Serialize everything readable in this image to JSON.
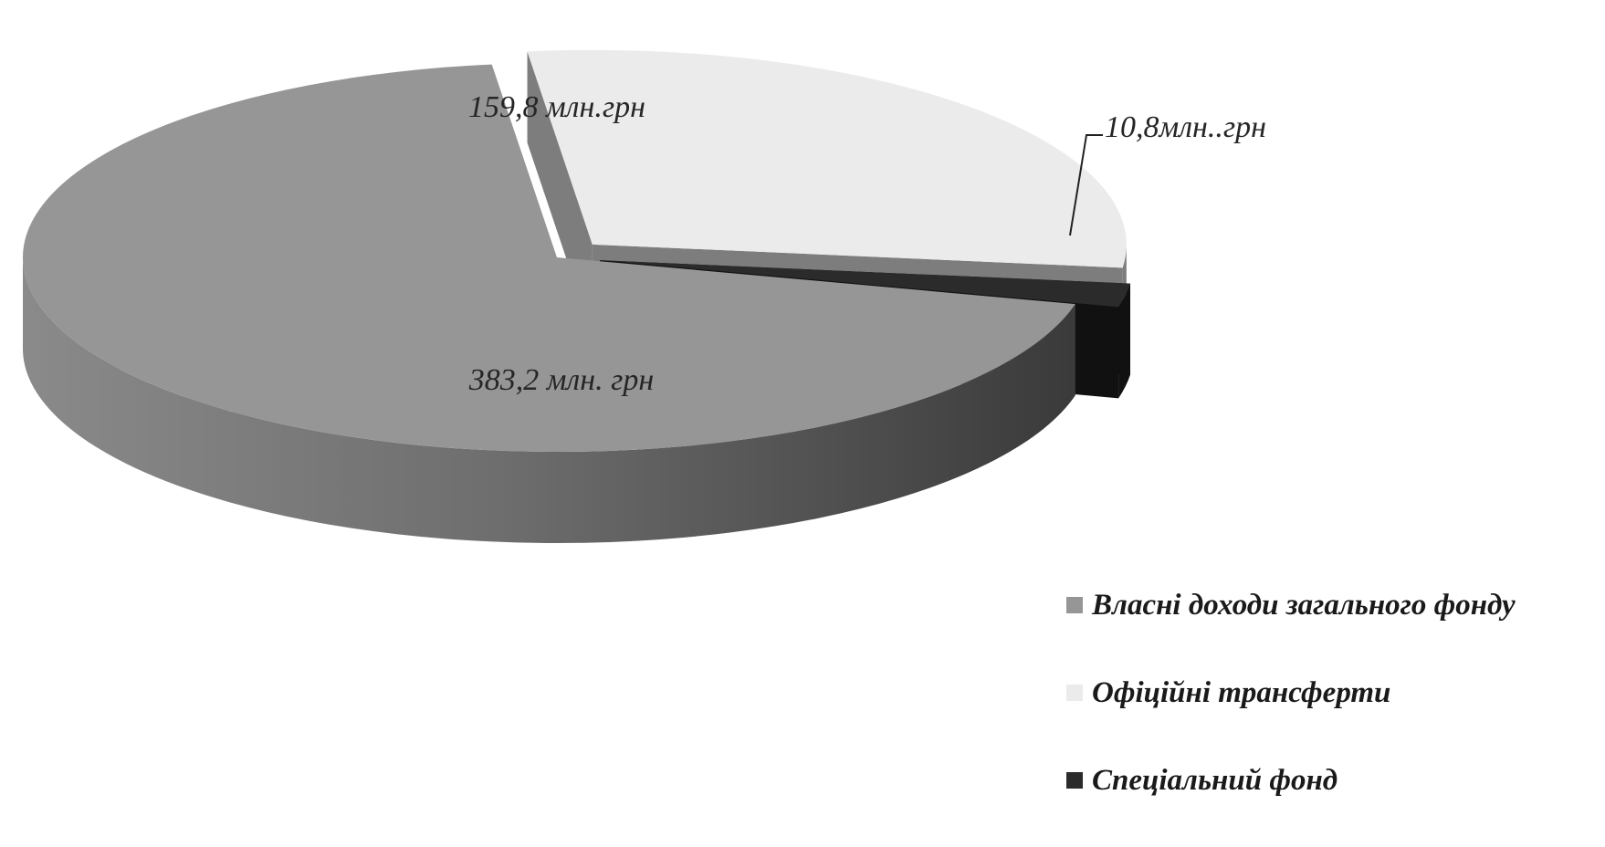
{
  "chart_data": {
    "type": "pie",
    "style": "3d-exploded",
    "title": "",
    "unit_note": "млн. грн",
    "legend_position": "bottom-right",
    "slices": [
      {
        "name": "Власні доходи загального фонду",
        "value": 383.2,
        "label": "383,2 млн. грн",
        "color": "#969696",
        "side_color": "#5a5a5a"
      },
      {
        "name": "Офіційні трансферти",
        "value": 159.8,
        "label": "159,8 млн.грн",
        "color": "#ebebeb",
        "side_color": "#7d7d7d"
      },
      {
        "name": "Спеціальний фонд",
        "value": 10.8,
        "label": "10,8млн..грн",
        "color": "#2b2b2b",
        "side_color": "#111111"
      }
    ]
  }
}
